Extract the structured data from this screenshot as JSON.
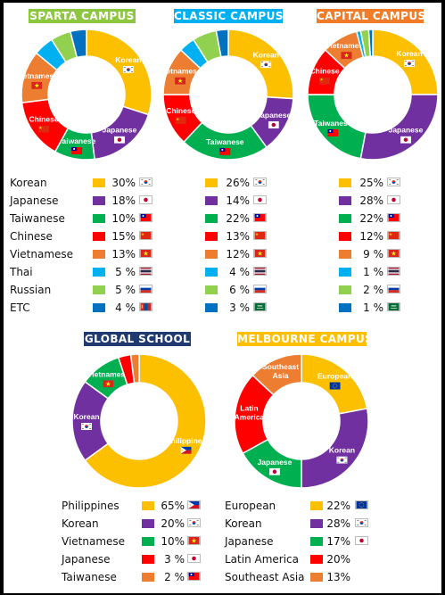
{
  "chart_data": [
    {
      "type": "pie",
      "title": "SPARTA CAMPUS",
      "title_color": "#8dc63f",
      "categories": [
        "Korean",
        "Japanese",
        "Taiwanese",
        "Chinese",
        "Vietnamese",
        "Thai",
        "Russian",
        "ETC"
      ],
      "values": [
        30,
        18,
        10,
        15,
        13,
        5,
        5,
        4
      ],
      "value_labels": [
        "30%",
        "18%",
        "10%",
        "15%",
        "13%",
        "5 %",
        "5 %",
        "4 %"
      ],
      "colors": [
        "#fcc000",
        "#7030a0",
        "#00b050",
        "#ff0000",
        "#ed7d31",
        "#00b0f0",
        "#92d050",
        "#0070c0"
      ],
      "flags": [
        "flag-korea",
        "flag-japan",
        "flag-taiwan",
        "flag-china",
        "flag-vietnam",
        "flag-thailand",
        "flag-russia",
        "flag-mongolia"
      ],
      "slice_labels": [
        "Korean",
        "Japanese",
        "Taiwanese",
        "Chinese",
        "Vietnamese",
        "",
        "",
        ""
      ]
    },
    {
      "type": "pie",
      "title": "CLASSIC CAMPUS",
      "title_color": "#00b0f0",
      "categories": [
        "Korean",
        "Japanese",
        "Taiwanese",
        "Chinese",
        "Vietnamese",
        "Thai",
        "Russian",
        "ETC"
      ],
      "values": [
        26,
        14,
        22,
        13,
        12,
        4,
        6,
        3
      ],
      "value_labels": [
        "26%",
        "14%",
        "22%",
        "13%",
        "12%",
        "4 %",
        "6 %",
        "3 %"
      ],
      "colors": [
        "#fcc000",
        "#7030a0",
        "#00b050",
        "#ff0000",
        "#ed7d31",
        "#00b0f0",
        "#92d050",
        "#0070c0"
      ],
      "flags": [
        "flag-korea",
        "flag-japan",
        "flag-taiwan",
        "flag-china",
        "flag-vietnam",
        "flag-thailand",
        "flag-russia",
        "flag-saudi"
      ],
      "slice_labels": [
        "Korean",
        "Japanese",
        "Taiwanese",
        "Chinese",
        "Vietnamese",
        "",
        "",
        ""
      ]
    },
    {
      "type": "pie",
      "title": "CAPITAL CAMPUS",
      "title_color": "#f07c2a",
      "categories": [
        "Korean",
        "Japanese",
        "Taiwanese",
        "Chinese",
        "Vietnamese",
        "Thai",
        "Russian",
        "ETC"
      ],
      "values": [
        25,
        28,
        22,
        12,
        9,
        1,
        2,
        1
      ],
      "value_labels": [
        "25%",
        "28%",
        "22%",
        "12%",
        "9 %",
        "1 %",
        "2 %",
        "1 %"
      ],
      "colors": [
        "#fcc000",
        "#7030a0",
        "#00b050",
        "#ff0000",
        "#ed7d31",
        "#00b0f0",
        "#92d050",
        "#0070c0"
      ],
      "flags": [
        "flag-korea",
        "flag-japan",
        "flag-taiwan",
        "flag-china",
        "flag-vietnam",
        "flag-thailand",
        "flag-russia",
        "flag-saudi"
      ],
      "slice_labels": [
        "Korean",
        "Japanese",
        "Taiwanese",
        "Chinese",
        "Vietnamese",
        "",
        "",
        ""
      ]
    },
    {
      "type": "pie",
      "title": "GLOBAL SCHOOL",
      "title_color": "#1f3a6e",
      "categories": [
        "Philippines",
        "Korean",
        "Vietnamese",
        "Japanese",
        "Taiwanese"
      ],
      "values": [
        65,
        20,
        10,
        3,
        2
      ],
      "value_labels": [
        "65%",
        "20%",
        "10%",
        "3  %",
        "2  %"
      ],
      "colors": [
        "#fcc000",
        "#7030a0",
        "#00b050",
        "#ff0000",
        "#ed7d31"
      ],
      "flags": [
        "flag-philippines",
        "flag-korea",
        "flag-vietnam",
        "flag-japan",
        "flag-taiwan"
      ],
      "slice_labels": [
        "Philippines",
        "Korean",
        "Vietnamese",
        "",
        ""
      ]
    },
    {
      "type": "pie",
      "title": "MELBOURNE CAMPUS",
      "title_color": "#fcc000",
      "categories": [
        "European",
        "Korean",
        "Japanese",
        "Latin America",
        "Southeast Asia"
      ],
      "values": [
        22,
        28,
        17,
        20,
        13
      ],
      "value_labels": [
        "22%",
        "28%",
        "17%",
        "20%",
        "13%"
      ],
      "colors": [
        "#fcc000",
        "#7030a0",
        "#00b050",
        "#ff0000",
        "#ed7d31"
      ],
      "flags": [
        "flag-eu",
        "flag-korea",
        "flag-japan",
        "",
        ""
      ],
      "slice_labels": [
        "European",
        "Korean",
        "Japanese",
        "Latin America",
        "Southeast Asia"
      ]
    }
  ]
}
